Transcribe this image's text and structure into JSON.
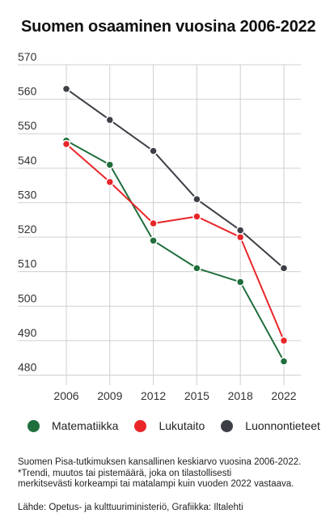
{
  "title": "Suomen osaaminen vuosina 2006-2022",
  "chart_data": {
    "type": "line",
    "title": "Suomen osaaminen vuosina 2006-2022",
    "x": [
      "2006",
      "2009",
      "2012",
      "2015",
      "2018",
      "2022"
    ],
    "yticks": [
      480,
      490,
      500,
      510,
      520,
      530,
      540,
      550,
      560,
      570
    ],
    "ylim": [
      478,
      570
    ],
    "grid": true,
    "legend_placement": "bottom",
    "series": [
      {
        "name": "Matematiikka",
        "color": "#1f6e3c",
        "values": [
          548,
          541,
          519,
          511,
          507,
          484
        ]
      },
      {
        "name": "Lukutaito",
        "color": "#e8262a",
        "values": [
          547,
          536,
          524,
          526,
          520,
          490
        ]
      },
      {
        "name": "Luonnontieteet",
        "color": "#3d3f46",
        "values": [
          563,
          554,
          545,
          531,
          522,
          511
        ]
      }
    ]
  },
  "footnote": {
    "line1": "Suomen Pisa-tutkimuksen kansallinen keskiarvo vuosina 2006-2022.",
    "line2": "*Trendi, muutos tai pistemäärä, joka on tilastollisesti",
    "line3": "merkitsevästi  korkeampi tai matalampi kuin vuoden 2022 vastaava."
  },
  "source": "Lähde: Opetus- ja kulttuuriministeriö, Grafiikka: Iltalehti"
}
